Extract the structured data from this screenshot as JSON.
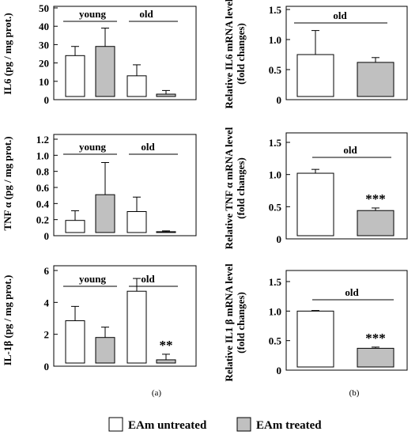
{
  "legend": {
    "items": [
      {
        "label": "EAm untreated",
        "fill": "#ffffff"
      },
      {
        "label": "EAm treated",
        "fill": "#c0c0c0"
      }
    ]
  },
  "panel_labels": [
    "(a)",
    "(b)"
  ],
  "chart_data": [
    {
      "type": "bar",
      "ylabel": "IL6 (pg / mg prot.)",
      "yticks": [
        "0",
        "10",
        "20",
        "30",
        "40",
        "50"
      ],
      "ylim": [
        0,
        50
      ],
      "groups": [
        "young",
        "old"
      ],
      "categories": [
        "young untreated",
        "young treated",
        "old untreated",
        "old treated"
      ],
      "values": [
        24,
        29,
        13,
        3
      ],
      "errors": [
        5,
        10,
        6,
        2
      ],
      "annotations": [
        "",
        "",
        "",
        ""
      ]
    },
    {
      "type": "bar",
      "ylabel": "TNF α (pg / mg prot.)",
      "yticks": [
        "0",
        "0.2",
        "0.4",
        "0.6",
        "0.8",
        "1.0",
        "1.2"
      ],
      "ylim": [
        0,
        1.2
      ],
      "groups": [
        "young",
        "old"
      ],
      "categories": [
        "young untreated",
        "young treated",
        "old untreated",
        "old treated"
      ],
      "values": [
        0.19,
        0.51,
        0.3,
        0.05
      ],
      "errors": [
        0.12,
        0.4,
        0.18,
        0.01
      ],
      "annotations": [
        "",
        "",
        "",
        ""
      ]
    },
    {
      "type": "bar",
      "ylabel": "IL-1β (pg / mg prot.)",
      "yticks": [
        "0",
        "2",
        "4",
        "6"
      ],
      "ylim": [
        0,
        6.5
      ],
      "groups": [
        "young",
        "old"
      ],
      "categories": [
        "young untreated",
        "young treated",
        "old untreated",
        "old treated"
      ],
      "values": [
        2.85,
        1.8,
        4.7,
        0.4
      ],
      "errors": [
        0.9,
        0.65,
        0.8,
        0.35
      ],
      "annotations": [
        "",
        "",
        "",
        "**"
      ]
    },
    {
      "type": "bar",
      "ylabel": "Relative IL6 mRNA level",
      "ylabel2": "(fold changes)",
      "yticks": [
        "0",
        "0.5",
        "1.0",
        "1.5"
      ],
      "ylim": [
        0,
        1.5
      ],
      "groups": [
        "old"
      ],
      "categories": [
        "old untreated",
        "old treated"
      ],
      "values": [
        0.75,
        0.62
      ],
      "errors": [
        0.4,
        0.08
      ],
      "annotations": [
        "",
        ""
      ]
    },
    {
      "type": "bar",
      "ylabel": "Relative TNF α mRNA level",
      "ylabel2": "(fold changes)",
      "yticks": [
        "0",
        "0.5",
        "1.0",
        "1.5"
      ],
      "ylim": [
        0,
        1.5
      ],
      "groups": [
        "old"
      ],
      "categories": [
        "old untreated",
        "old treated"
      ],
      "values": [
        1.02,
        0.44
      ],
      "errors": [
        0.06,
        0.04
      ],
      "annotations": [
        "",
        "***"
      ]
    },
    {
      "type": "bar",
      "ylabel": "Relative IL1 β mRNA level",
      "ylabel2": "(fold changes)",
      "yticks": [
        "0",
        "0.5",
        "1.0",
        "1.5"
      ],
      "ylim": [
        0,
        1.5
      ],
      "groups": [
        "old"
      ],
      "categories": [
        "old untreated",
        "old treated"
      ],
      "values": [
        1.0,
        0.37
      ],
      "errors": [
        0.01,
        0.02
      ],
      "annotations": [
        "",
        "***"
      ]
    }
  ]
}
